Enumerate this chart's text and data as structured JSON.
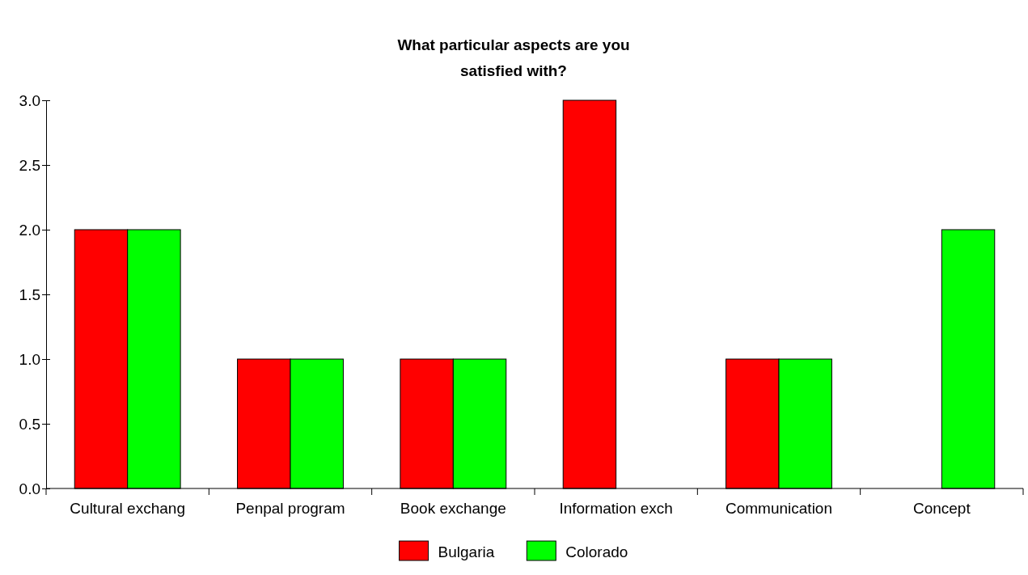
{
  "chart_data": {
    "type": "bar",
    "title": "What particular aspects are you satisfied with?",
    "categories": [
      "Cultural exchang",
      "Penpal program",
      "Book exchange",
      "Information exch",
      "Communication",
      "Concept"
    ],
    "series": [
      {
        "name": "Bulgaria",
        "color": "#ff0000",
        "values": [
          2,
          1,
          1,
          3,
          1,
          0
        ]
      },
      {
        "name": "Colorado",
        "color": "#00ff00",
        "values": [
          2,
          1,
          1,
          0,
          1,
          2
        ]
      }
    ],
    "ylim": [
      0,
      3
    ],
    "yticks": [
      {
        "value": 0,
        "label": "0.0"
      },
      {
        "value": 0.5,
        "label": "0.5"
      },
      {
        "value": 1,
        "label": "1.0"
      },
      {
        "value": 1.5,
        "label": "1.5"
      },
      {
        "value": 2,
        "label": "2.0"
      },
      {
        "value": 2.5,
        "label": "2.5"
      },
      {
        "value": 3,
        "label": "3.0"
      }
    ],
    "grid": false,
    "legend": "bottom"
  }
}
